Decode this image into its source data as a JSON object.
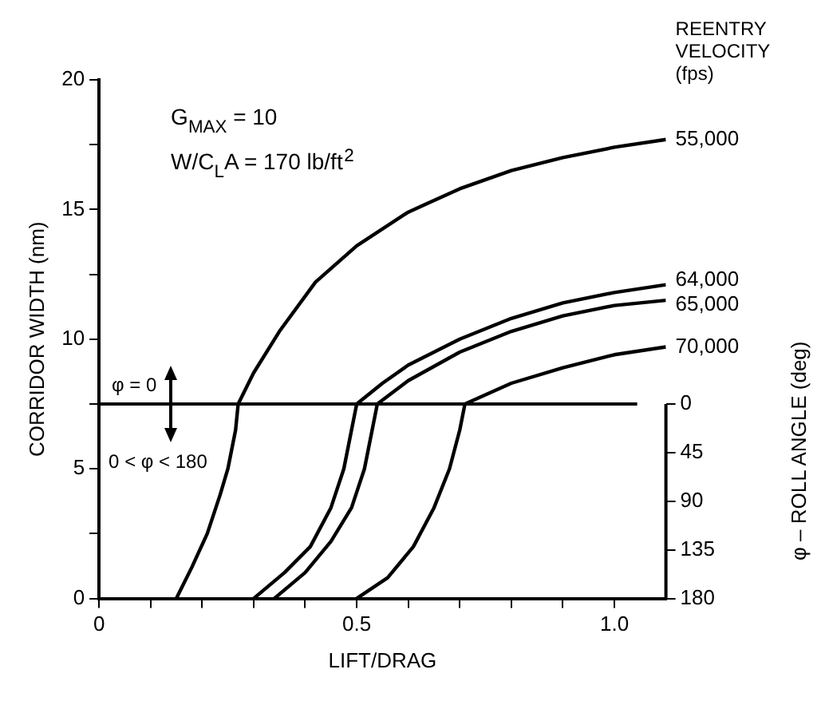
{
  "chart_data": {
    "type": "line",
    "xlabel": "LIFT/DRAG",
    "ylabel": "CORRIDOR WIDTH (nm)",
    "y2label": "φ – ROLL ANGLE (deg)",
    "legend_title": "REENTRY VELOCITY (fps)",
    "xlim": [
      0,
      1.1
    ],
    "xticks": [
      0,
      {
        "value": 0.1,
        "label": null
      },
      {
        "value": 0.2,
        "label": null
      },
      {
        "value": 0.3,
        "label": null
      },
      {
        "value": 0.4,
        "label": null
      },
      0.5,
      {
        "value": 0.6,
        "label": null
      },
      {
        "value": 0.7,
        "label": null
      },
      {
        "value": 0.8,
        "label": null
      },
      {
        "value": 0.9,
        "label": null
      },
      {
        "value": 1.0,
        "label": "1.0"
      }
    ],
    "ylim": [
      0,
      20
    ],
    "yticks": [
      0,
      {
        "value": 2.5,
        "label": null
      },
      5,
      {
        "value": 7.5,
        "label": null
      },
      10,
      {
        "value": 12.5,
        "label": null
      },
      15,
      {
        "value": 17.5,
        "label": null
      },
      20
    ],
    "y2lim": [
      180,
      -300
    ],
    "y2ticks": [
      0,
      45,
      90,
      135,
      180
    ],
    "grid": false,
    "legend": false,
    "marker": "none",
    "line_style": "solid",
    "ref_lines": [
      {
        "axis": "y",
        "value": 7.5,
        "label": null,
        "color": "#000000"
      }
    ],
    "annotations": [
      "G$_{MAX}$ = 10",
      "W/C$_{L}$A = 170 lb/ft$^{2}$",
      "φ = 0",
      "0 < φ < 180"
    ],
    "series": [
      {
        "name": "55,000",
        "color": "#000000",
        "x": [
          0.15,
          0.18,
          0.21,
          0.235,
          0.25,
          0.265,
          0.27,
          0.3,
          0.35,
          0.42,
          0.5,
          0.6,
          0.7,
          0.8,
          0.9,
          1.0,
          1.1
        ],
        "values": [
          0,
          1.2,
          2.5,
          4,
          5,
          6.5,
          7.5,
          8.7,
          10.3,
          12.2,
          13.6,
          14.9,
          15.8,
          16.5,
          17,
          17.4,
          17.7
        ]
      },
      {
        "name": "64,000",
        "color": "#000000",
        "x": [
          0.3,
          0.36,
          0.41,
          0.45,
          0.475,
          0.49,
          0.5,
          0.55,
          0.6,
          0.7,
          0.8,
          0.9,
          1.0,
          1.1
        ],
        "values": [
          0,
          1,
          2,
          3.5,
          5,
          6.5,
          7.5,
          8.3,
          9,
          10,
          10.8,
          11.4,
          11.8,
          12.1
        ]
      },
      {
        "name": "65,000",
        "color": "#000000",
        "x": [
          0.34,
          0.4,
          0.45,
          0.49,
          0.515,
          0.53,
          0.54,
          0.6,
          0.7,
          0.8,
          0.9,
          1.0,
          1.1
        ],
        "values": [
          0,
          1,
          2.2,
          3.5,
          5,
          6.5,
          7.5,
          8.4,
          9.5,
          10.3,
          10.9,
          11.3,
          11.5
        ]
      },
      {
        "name": "70,000",
        "color": "#000000",
        "x": [
          0.5,
          0.56,
          0.61,
          0.65,
          0.68,
          0.7,
          0.71,
          0.8,
          0.9,
          1.0,
          1.1
        ],
        "values": [
          0,
          0.8,
          2,
          3.5,
          5,
          6.5,
          7.5,
          8.3,
          8.9,
          9.4,
          9.7
        ]
      }
    ]
  }
}
